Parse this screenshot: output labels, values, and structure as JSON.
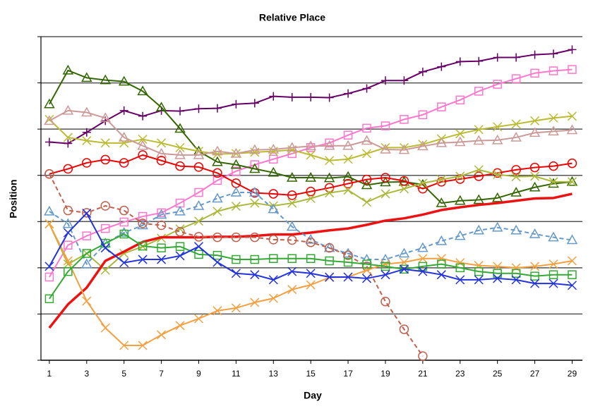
{
  "chart_data": {
    "type": "line",
    "title": "Relative Place",
    "x_label": "Day",
    "y_label": "Position",
    "x": [
      1,
      2,
      3,
      4,
      5,
      6,
      7,
      8,
      9,
      10,
      11,
      12,
      13,
      14,
      15,
      16,
      17,
      18,
      19,
      20,
      21,
      22,
      23,
      24,
      25,
      26,
      27,
      28,
      29
    ],
    "xlim": [
      0.55,
      29.55
    ],
    "xticks": [
      1,
      3,
      5,
      7,
      9,
      11,
      13,
      15,
      17,
      19,
      21,
      23,
      25,
      27,
      29
    ],
    "ylim": [
      0,
      7
    ],
    "yticks": [
      0,
      1,
      2,
      3,
      4,
      5,
      6,
      7
    ],
    "grid": true,
    "series": [
      {
        "color": "#660066",
        "marker": "plus",
        "dash": false,
        "width": 2,
        "values": [
          4.72,
          4.69,
          4.93,
          5.18,
          5.4,
          5.28,
          5.4,
          5.39,
          5.44,
          5.45,
          5.54,
          5.56,
          5.71,
          5.69,
          5.69,
          5.68,
          5.77,
          5.88,
          6.05,
          6.05,
          6.24,
          6.35,
          6.46,
          6.47,
          6.55,
          6.55,
          6.61,
          6.63,
          6.72
        ]
      },
      {
        "color": "#ff77cc",
        "marker": "square",
        "dash": false,
        "width": 2,
        "values": [
          1.8,
          2.49,
          2.69,
          2.85,
          2.99,
          3.11,
          3.19,
          3.4,
          3.63,
          3.89,
          4.09,
          4.23,
          4.35,
          4.47,
          4.6,
          4.7,
          4.87,
          5.02,
          5.07,
          5.21,
          5.31,
          5.48,
          5.63,
          5.82,
          5.97,
          6.09,
          6.21,
          6.26,
          6.29
        ]
      },
      {
        "color": "#336600",
        "marker": "triangle",
        "dash": false,
        "width": 2,
        "values": [
          5.54,
          6.27,
          6.11,
          6.06,
          6.03,
          5.82,
          5.47,
          5.01,
          4.52,
          4.29,
          4.23,
          4.14,
          4.06,
          3.95,
          3.95,
          3.94,
          3.97,
          3.79,
          3.85,
          3.86,
          3.8,
          3.4,
          3.45,
          3.47,
          3.51,
          3.63,
          3.74,
          3.82,
          3.86
        ]
      },
      {
        "color": "#bbbb33",
        "marker": "x",
        "dash": false,
        "width": 2,
        "values": [
          5.21,
          4.82,
          4.75,
          4.7,
          4.7,
          4.78,
          4.7,
          4.6,
          4.52,
          4.46,
          4.47,
          4.5,
          4.52,
          4.55,
          4.44,
          4.32,
          4.35,
          4.47,
          4.6,
          4.6,
          4.67,
          4.79,
          4.9,
          4.99,
          5.05,
          5.11,
          5.18,
          5.24,
          5.28
        ]
      },
      {
        "color": "#cc9999",
        "marker": "triangle",
        "dash": false,
        "width": 2,
        "values": [
          5.18,
          5.4,
          5.36,
          5.24,
          4.82,
          4.64,
          4.47,
          4.44,
          4.44,
          4.52,
          4.47,
          4.55,
          4.56,
          4.6,
          4.63,
          4.64,
          4.64,
          4.75,
          4.56,
          4.55,
          4.63,
          4.7,
          4.72,
          4.75,
          4.76,
          4.82,
          4.92,
          4.95,
          4.98
        ]
      },
      {
        "color": "#ee0000",
        "marker": "circle",
        "dash": false,
        "width": 2,
        "values": [
          4.03,
          4.14,
          4.27,
          4.34,
          4.27,
          4.44,
          4.32,
          4.2,
          4.18,
          4.05,
          3.83,
          3.62,
          3.6,
          3.57,
          3.65,
          3.73,
          3.82,
          3.91,
          3.95,
          3.88,
          3.71,
          3.86,
          3.92,
          3.98,
          4.05,
          4.12,
          4.17,
          4.2,
          4.26
        ]
      },
      {
        "color": "#aab83a",
        "marker": "x",
        "dash": false,
        "width": 2,
        "values": [
          2.95,
          2.08,
          2.31,
          1.95,
          2.31,
          2.46,
          2.64,
          2.84,
          3.01,
          3.22,
          3.33,
          3.4,
          3.34,
          3.4,
          3.5,
          3.62,
          3.68,
          3.42,
          3.6,
          3.71,
          3.83,
          3.91,
          3.98,
          4.12,
          4.02,
          3.97,
          3.98,
          3.86,
          3.86
        ]
      },
      {
        "color": "#ee1111",
        "marker": "none",
        "dash": false,
        "width": 3.5,
        "values": [
          0.7,
          1.21,
          1.57,
          2.15,
          2.35,
          2.56,
          2.66,
          2.66,
          2.66,
          2.67,
          2.67,
          2.69,
          2.72,
          2.72,
          2.76,
          2.81,
          2.85,
          2.93,
          3.02,
          3.07,
          3.15,
          3.25,
          3.31,
          3.36,
          3.4,
          3.45,
          3.5,
          3.51,
          3.6
        ]
      },
      {
        "color": "#6699cc",
        "marker": "triangle",
        "dash": true,
        "width": 2,
        "values": [
          3.22,
          2.95,
          2.08,
          2.53,
          2.76,
          2.92,
          3.15,
          3.22,
          3.34,
          3.5,
          3.63,
          3.63,
          3.27,
          2.89,
          2.61,
          2.43,
          2.31,
          2.18,
          2.18,
          2.31,
          2.43,
          2.58,
          2.69,
          2.81,
          2.87,
          2.81,
          2.73,
          2.66,
          2.6
        ]
      },
      {
        "color": "#c0604d",
        "marker": "circle",
        "dash": true,
        "width": 2,
        "values": [
          4.03,
          3.24,
          3.19,
          3.34,
          3.24,
          2.96,
          2.92,
          2.78,
          2.67,
          2.66,
          2.66,
          2.66,
          2.61,
          2.6,
          2.55,
          2.43,
          2.27,
          2.03,
          1.27,
          0.67,
          0.09,
          null,
          null,
          null,
          null,
          null,
          null,
          null,
          null
        ]
      },
      {
        "color": "#f4a040",
        "marker": "x",
        "dash": false,
        "width": 2,
        "values": [
          2.95,
          2.15,
          1.28,
          0.7,
          0.32,
          0.32,
          0.55,
          0.75,
          0.9,
          1.07,
          1.13,
          1.25,
          1.34,
          1.53,
          1.63,
          1.79,
          1.8,
          1.95,
          2.08,
          2.12,
          2.2,
          2.2,
          2.11,
          2.05,
          2.03,
          2.0,
          2.03,
          2.08,
          2.15
        ]
      },
      {
        "color": "#33aa33",
        "marker": "square",
        "dash": false,
        "width": 2,
        "values": [
          1.33,
          1.92,
          2.31,
          2.53,
          2.73,
          2.47,
          2.43,
          2.46,
          2.29,
          2.27,
          2.18,
          2.18,
          2.2,
          2.2,
          2.2,
          2.15,
          2.12,
          2.08,
          2.03,
          1.97,
          2.03,
          2.08,
          2.0,
          1.92,
          1.88,
          1.88,
          1.82,
          1.85,
          1.85
        ]
      },
      {
        "color": "#2233dd",
        "marker": "x",
        "dash": false,
        "width": 2,
        "values": [
          2.03,
          2.76,
          3.18,
          2.43,
          2.11,
          2.18,
          2.18,
          2.26,
          2.46,
          2.12,
          1.88,
          1.85,
          1.74,
          1.92,
          1.88,
          1.8,
          1.8,
          1.77,
          1.85,
          1.97,
          1.92,
          1.85,
          1.74,
          1.74,
          1.77,
          1.74,
          1.66,
          1.66,
          1.62
        ]
      }
    ]
  }
}
